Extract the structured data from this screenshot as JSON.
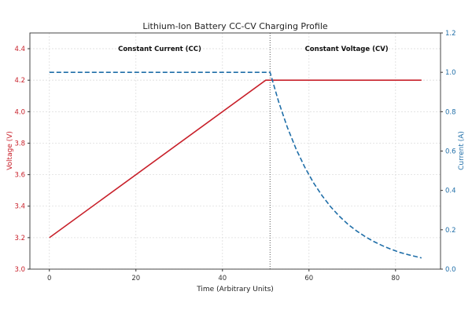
{
  "chart_data": {
    "type": "line",
    "title": "Lithium-Ion Battery CC-CV Charging Profile",
    "xlabel": "Time (Arbitrary Units)",
    "ylabel_left": "Voltage (V)",
    "ylabel_right": "Current (A)",
    "xlim": [
      -4.5,
      90.4
    ],
    "ylim_left": [
      3.0,
      4.5
    ],
    "ylim_right": [
      0.0,
      1.2
    ],
    "xticks": [
      0,
      20,
      40,
      60,
      80
    ],
    "yticks_left": [
      "3.0",
      "3.2",
      "3.4",
      "3.6",
      "3.8",
      "4.0",
      "4.2",
      "4.4"
    ],
    "yticks_right": [
      "0.0",
      "0.2",
      "0.4",
      "0.6",
      "0.8",
      "1.0",
      "1.2"
    ],
    "grid": true,
    "transition_x": 51,
    "annotations": [
      {
        "text": "Constant Current (CC)",
        "x": 25.5,
        "y": 4.4
      },
      {
        "text": "Constant Voltage (CV)",
        "x": 68.7,
        "y": 4.4
      }
    ],
    "series": [
      {
        "axis": "left",
        "color": "#c8202a",
        "style": "solid",
        "points": [
          [
            0,
            3.2
          ],
          [
            50,
            4.2
          ],
          [
            86,
            4.2
          ]
        ]
      },
      {
        "axis": "right",
        "color": "#1f6ea8",
        "style": "dashed",
        "points": [
          [
            0,
            1.0
          ],
          [
            51,
            1.0
          ],
          [
            53,
            0.849
          ],
          [
            55,
            0.72
          ],
          [
            57,
            0.611
          ],
          [
            59,
            0.519
          ],
          [
            61,
            0.44
          ],
          [
            63,
            0.374
          ],
          [
            65,
            0.317
          ],
          [
            67,
            0.269
          ],
          [
            69,
            0.228
          ],
          [
            71,
            0.194
          ],
          [
            73,
            0.165
          ],
          [
            75,
            0.14
          ],
          [
            77,
            0.119
          ],
          [
            79,
            0.101
          ],
          [
            81,
            0.085
          ],
          [
            83,
            0.073
          ],
          [
            85,
            0.062
          ],
          [
            86,
            0.057
          ]
        ]
      }
    ],
    "colors": {
      "left_axis": "#c8202a",
      "right_axis": "#1f6ea8"
    }
  }
}
